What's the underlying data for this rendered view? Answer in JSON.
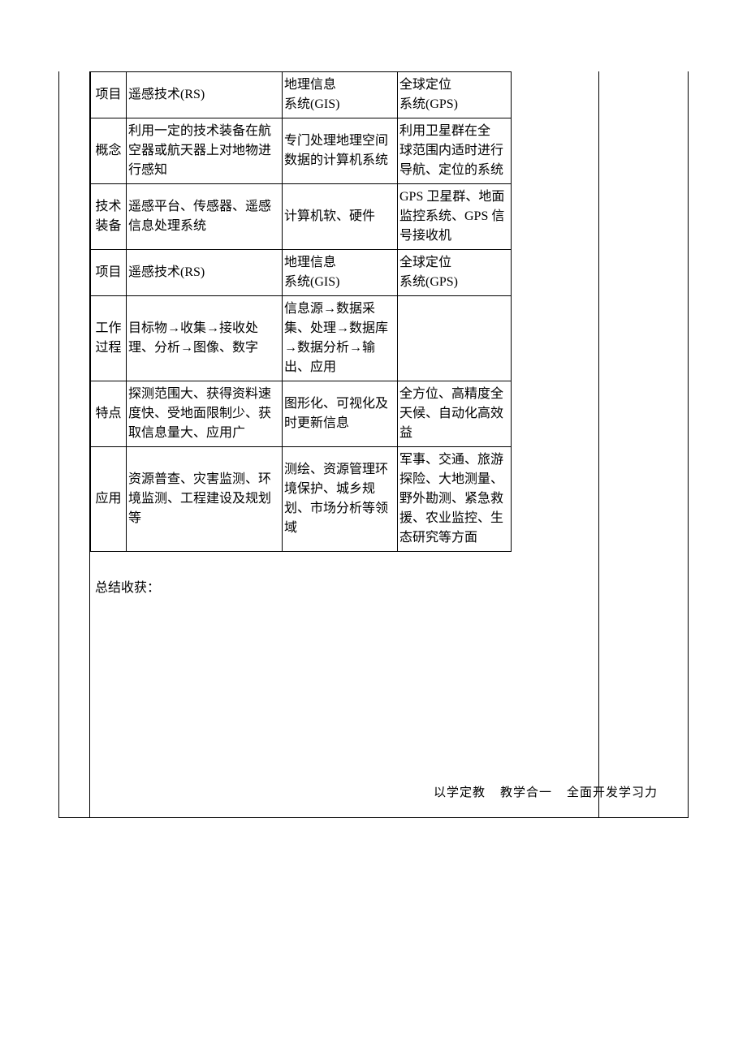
{
  "table": {
    "rows": [
      {
        "label": "项目",
        "rs": "遥感技术(RS)",
        "gis": "地理信息\n系统(GIS)",
        "gps": "全球定位\n系统(GPS)"
      },
      {
        "label": "概念",
        "rs": "利用一定的技术装备在航空器或航天器上对地物进行感知",
        "gis": "专门处理地理空间数据的计算机系统",
        "gps": "利用卫星群在全\n球范围内适时进行导航、定位的系统"
      },
      {
        "label": "技术装备",
        "rs": "遥感平台、传感器、遥感信息处理系统",
        "gis": "计算机软、硬件",
        "gps": "GPS 卫星群、地面监控系统、GPS 信号接收机"
      },
      {
        "label": "项目",
        "rs": "遥感技术(RS)",
        "gis": "地理信息\n系统(GIS)",
        "gps": "全球定位\n系统(GPS)"
      },
      {
        "label": "工作过程",
        "rs": "目标物→收集→接收处理、分析→图像、数字",
        "gis": "信息源→数据采\n集、处理→数据库→数据分析→输出、应用",
        "gps": ""
      },
      {
        "label": "特点",
        "rs": "探测范围大、获得资料速度快、受地面限制少、获取信息量大、应用广",
        "gis": "图形化、可视化及时更新信息",
        "gps": "全方位、高精度全天候、自动化高效益"
      },
      {
        "label": "应用",
        "rs": "资源普查、灾害监测、环境监测、工程建设及规划等",
        "gis": "测绘、资源管理环境保护、城乡规划、市场分析等领域",
        "gps": "军事、交通、旅游探险、大地测量、野外勘测、紧急救援、农业监控、生态研究等方面"
      }
    ]
  },
  "summary_label": "总结收获：",
  "footer": {
    "part1": "以学定教",
    "part2": "教学合一",
    "part3": "全面开发学习力"
  },
  "colors": {
    "text": "#000000",
    "background": "#ffffff",
    "border": "#000000"
  },
  "typography": {
    "body_fontsize": 16,
    "footer_fontsize": 15,
    "font_family": "SimSun"
  }
}
